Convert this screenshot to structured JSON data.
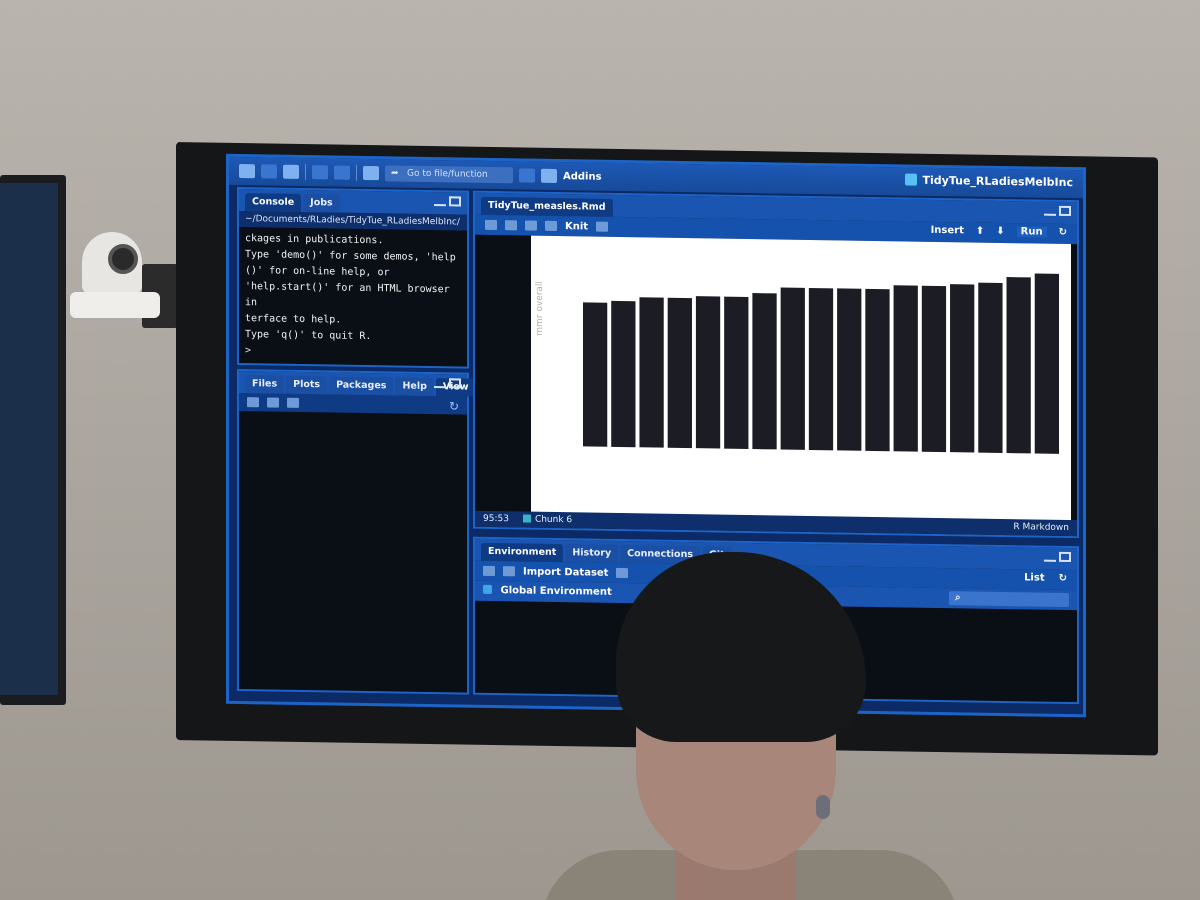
{
  "toolbar": {
    "goto_placeholder": "Go to file/function",
    "addins_label": "Addins",
    "project_name": "TidyTue_RLadiesMelbInc"
  },
  "console_pane": {
    "tabs": [
      "Console",
      "Jobs"
    ],
    "path": "~/Documents/RLadies/TidyTue_RLadiesMelbInc/",
    "lines": [
      "ckages in publications.",
      "",
      "Type 'demo()' for some demos, 'help",
      "()' for on-line help, or",
      "'help.start()' for an HTML browser in",
      "terface to help.",
      "Type 'q()' to quit R."
    ],
    "prompt": ">"
  },
  "files_pane": {
    "tabs": [
      "Files",
      "Plots",
      "Packages",
      "Help",
      "View"
    ]
  },
  "editor_pane": {
    "file_tab": "TidyTue_measles.Rmd",
    "knit_label": "Knit",
    "insert_label": "Insert",
    "run_label": "Run",
    "status_position": "95:53",
    "status_chunk": "Chunk 6",
    "status_mode": "R Markdown",
    "plot_y_label": "mmr overall"
  },
  "chart_data": {
    "type": "bar",
    "ylabel": "mmr overall",
    "values": [
      72,
      73,
      75,
      75,
      76,
      76,
      78,
      81,
      81,
      81,
      81,
      83,
      83,
      84,
      85,
      88,
      90
    ],
    "note": "values are relative bar heights read from the plot (axis ticks not legible)"
  },
  "env_pane": {
    "tabs": [
      "Environment",
      "History",
      "Connections",
      "Git"
    ],
    "import_label": "Import Dataset",
    "list_label": "List",
    "scope_label": "Global Environment",
    "search_icon": "search-icon"
  }
}
